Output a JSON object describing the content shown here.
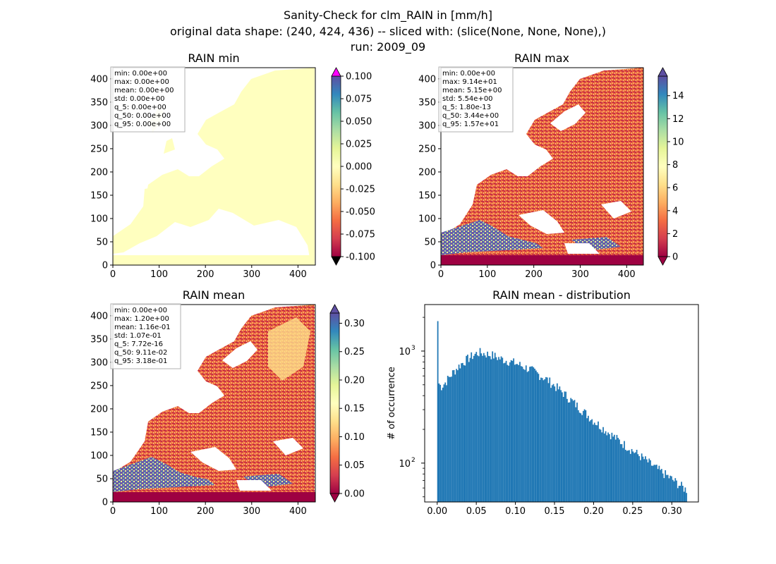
{
  "figure": {
    "title_lines": [
      "Sanity-Check for clm_RAIN in [mm/h]",
      "original data shape: (240, 424, 436) -- sliced with: (slice(None, None, None),)",
      "run: 2009_09"
    ]
  },
  "chart_data": [
    {
      "type": "heatmap",
      "title": "RAIN min",
      "xlim": [
        0,
        436
      ],
      "ylim": [
        0,
        424
      ],
      "xticks": [
        0,
        100,
        200,
        300,
        400
      ],
      "yticks": [
        0,
        50,
        100,
        150,
        200,
        250,
        300,
        350,
        400
      ],
      "colorbar": {
        "ticks": [
          "-0.100",
          "-0.075",
          "-0.050",
          "-0.025",
          "0.000",
          "0.025",
          "0.050",
          "0.075",
          "0.100"
        ],
        "extend": "both",
        "over_color": "#ff00ff",
        "under_color": "#000000"
      },
      "stats": [
        "min: 0.00e+00",
        "max: 0.00e+00",
        "mean: 0.00e+00",
        "std: 0.00e+00",
        "q_5: 0.00e+00",
        "q_50: 0.00e+00",
        "q_95: 0.00e+00"
      ]
    },
    {
      "type": "heatmap",
      "title": "RAIN max",
      "xlim": [
        0,
        436
      ],
      "ylim": [
        0,
        424
      ],
      "xticks": [
        0,
        100,
        200,
        300,
        400
      ],
      "yticks": [
        0,
        50,
        100,
        150,
        200,
        250,
        300,
        350,
        400
      ],
      "colorbar": {
        "ticks": [
          "0",
          "2",
          "4",
          "6",
          "8",
          "10",
          "12",
          "14"
        ],
        "extend": "both",
        "vmax": 15.7
      },
      "stats": [
        "min: 0.00e+00",
        "max: 9.14e+01",
        "mean: 5.15e+00",
        "std: 5.54e+00",
        "q_5: 1.80e-13",
        "q_50: 3.44e+00",
        "q_95: 1.57e+01"
      ]
    },
    {
      "type": "heatmap",
      "title": "RAIN mean",
      "xlim": [
        0,
        436
      ],
      "ylim": [
        0,
        424
      ],
      "xticks": [
        0,
        100,
        200,
        300,
        400
      ],
      "yticks": [
        0,
        50,
        100,
        150,
        200,
        250,
        300,
        350,
        400
      ],
      "colorbar": {
        "ticks": [
          "0.00",
          "0.05",
          "0.10",
          "0.15",
          "0.20",
          "0.25",
          "0.30"
        ],
        "extend": "both",
        "vmax": 0.318
      },
      "stats": [
        "min: 0.00e+00",
        "max: 1.20e+00",
        "mean: 1.16e-01",
        "std: 1.07e-01",
        "q_5: 7.72e-16",
        "q_50: 9.11e-02",
        "q_95: 3.18e-01"
      ]
    },
    {
      "type": "bar",
      "title": "RAIN mean - distribution",
      "ylabel": "# of occurrence",
      "xlim": [
        -0.016,
        0.334
      ],
      "ylim": [
        45,
        2600
      ],
      "yscale": "log",
      "xticks": [
        "0.00",
        "0.05",
        "0.10",
        "0.15",
        "0.20",
        "0.25",
        "0.30"
      ],
      "yticks": [
        {
          "label": "10",
          "exp": "2",
          "value": 100
        },
        {
          "label": "10",
          "exp": "3",
          "value": 1000
        }
      ],
      "bin_width": 0.00159,
      "color": "#1f77b4",
      "key_points": [
        [
          0.0,
          1850
        ],
        [
          0.002,
          520
        ],
        [
          0.005,
          480
        ],
        [
          0.01,
          520
        ],
        [
          0.02,
          640
        ],
        [
          0.03,
          760
        ],
        [
          0.04,
          860
        ],
        [
          0.05,
          950
        ],
        [
          0.055,
          970
        ],
        [
          0.06,
          950
        ],
        [
          0.07,
          920
        ],
        [
          0.08,
          860
        ],
        [
          0.1,
          780
        ],
        [
          0.12,
          680
        ],
        [
          0.14,
          560
        ],
        [
          0.16,
          430
        ],
        [
          0.18,
          320
        ],
        [
          0.2,
          240
        ],
        [
          0.22,
          185
        ],
        [
          0.24,
          145
        ],
        [
          0.26,
          115
        ],
        [
          0.28,
          90
        ],
        [
          0.3,
          72
        ],
        [
          0.318,
          58
        ]
      ]
    }
  ]
}
